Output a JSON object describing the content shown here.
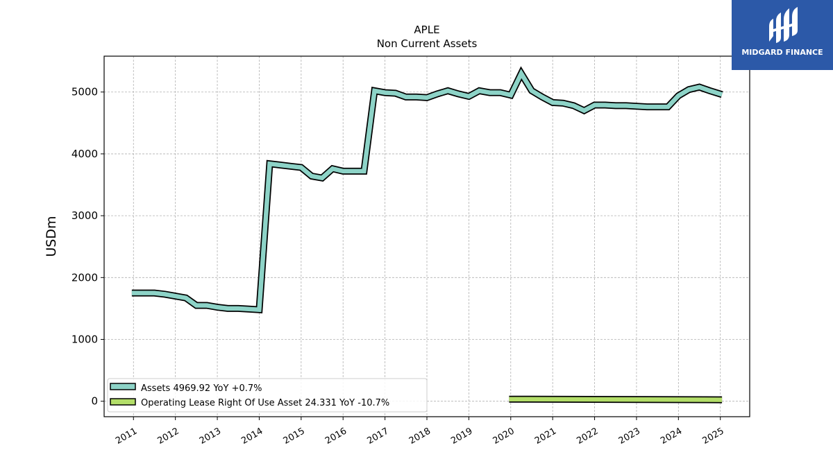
{
  "chart_data": {
    "type": "line",
    "title": "APLE",
    "subtitle": "Non Current  Assets",
    "ylabel": "USDm",
    "xlim": [
      2010.3,
      2025.7
    ],
    "ylim": [
      -250,
      5580
    ],
    "yticks": [
      0,
      1000,
      2000,
      3000,
      4000,
      5000
    ],
    "ytick_labels": [
      "0",
      "1000",
      "2000",
      "3000",
      "4000",
      "5000"
    ],
    "xticks": [
      2011,
      2012,
      2013,
      2014,
      2015,
      2016,
      2017,
      2018,
      2019,
      2020,
      2021,
      2022,
      2023,
      2024,
      2025
    ],
    "xtick_labels": [
      "2011",
      "2012",
      "2013",
      "2014",
      "2015",
      "2016",
      "2017",
      "2018",
      "2019",
      "2020",
      "2021",
      "2022",
      "2023",
      "2024",
      "2025"
    ],
    "grid": true,
    "legend_position": "lower-left",
    "series": [
      {
        "name": "Assets",
        "legend_label": "Assets  4969.92 YoY +0.7%",
        "color": "#8dd3c7",
        "x": [
          2010.96,
          2011.25,
          2011.5,
          2011.75,
          2012.0,
          2012.25,
          2012.5,
          2012.75,
          2013.0,
          2013.25,
          2013.5,
          2013.75,
          2014.0,
          2014.25,
          2014.5,
          2014.75,
          2015.0,
          2015.25,
          2015.5,
          2015.75,
          2016.0,
          2016.25,
          2016.5,
          2016.75,
          2017.0,
          2017.25,
          2017.5,
          2017.75,
          2018.0,
          2018.25,
          2018.5,
          2018.75,
          2019.0,
          2019.25,
          2019.5,
          2019.75,
          2020.0,
          2020.25,
          2020.5,
          2020.75,
          2021.0,
          2021.25,
          2021.5,
          2021.75,
          2022.0,
          2022.25,
          2022.5,
          2022.75,
          2023.0,
          2023.25,
          2023.5,
          2023.75,
          2024.0,
          2024.25,
          2024.5,
          2024.75,
          2025.04
        ],
        "values": [
          1750,
          1750,
          1750,
          1730,
          1700,
          1670,
          1550,
          1550,
          1520,
          1500,
          1500,
          1490,
          1480,
          3840,
          3820,
          3800,
          3780,
          3640,
          3610,
          3760,
          3720,
          3720,
          3720,
          5020,
          4990,
          4980,
          4920,
          4920,
          4910,
          4970,
          5020,
          4970,
          4930,
          5020,
          4990,
          4990,
          4950,
          5300,
          5020,
          4920,
          4830,
          4820,
          4780,
          4700,
          4790,
          4790,
          4780,
          4780,
          4770,
          4760,
          4760,
          4760,
          4940,
          5040,
          5080,
          5020,
          4960
        ]
      },
      {
        "name": "Operating Lease Right Of Use Asset",
        "legend_label": "Operating Lease Right Of Use Asset  24.331 YoY -10.7%",
        "color": "#b3de69",
        "x": [
          2019.96,
          2025.04
        ],
        "values": [
          34,
          24
        ]
      }
    ]
  },
  "logo": {
    "text": "MIDGARD FINANCE",
    "background": "#2c59a8"
  }
}
